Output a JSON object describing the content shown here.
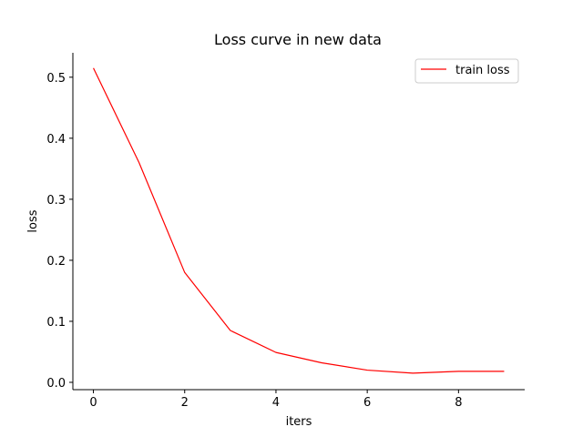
{
  "chart_data": {
    "type": "line",
    "title": "Loss curve in new data",
    "xlabel": "iters",
    "ylabel": "loss",
    "xlim": [
      -0.45,
      9.45
    ],
    "ylim": [
      -0.012,
      0.54
    ],
    "xticks": [
      0,
      2,
      4,
      6,
      8
    ],
    "xtick_labels": [
      "0",
      "2",
      "4",
      "6",
      "8"
    ],
    "yticks": [
      0.0,
      0.1,
      0.2,
      0.3,
      0.4,
      0.5
    ],
    "ytick_labels": [
      "0.0",
      "0.1",
      "0.2",
      "0.3",
      "0.4",
      "0.5"
    ],
    "grid": false,
    "legend": "top-right",
    "series": [
      {
        "name": "train loss",
        "color": "#ff0000",
        "x": [
          0,
          1,
          2,
          3,
          4,
          5,
          6,
          7,
          8,
          9
        ],
        "values": [
          0.515,
          0.36,
          0.18,
          0.085,
          0.049,
          0.032,
          0.02,
          0.015,
          0.018,
          0.018
        ]
      }
    ]
  }
}
